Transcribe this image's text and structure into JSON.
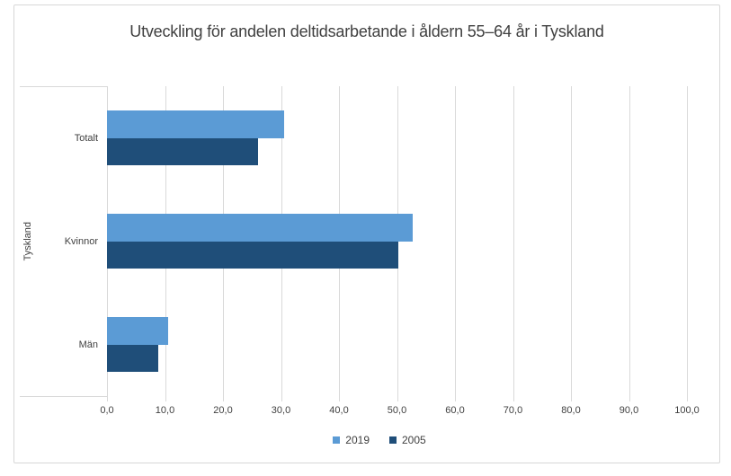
{
  "chart_data": {
    "type": "bar",
    "orientation": "horizontal",
    "title": "Utveckling för andelen deltidsarbetande i åldern 55–64 år i Tyskland",
    "category_group_label": "Tyskland",
    "categories": [
      "Totalt",
      "Kvinnor",
      "Män"
    ],
    "series": [
      {
        "name": "2019",
        "color": "#5B9BD5",
        "values": [
          30.6,
          52.7,
          10.5
        ]
      },
      {
        "name": "2005",
        "color": "#1F4E79",
        "values": [
          26.0,
          50.3,
          8.9
        ]
      }
    ],
    "xlim": [
      0,
      100
    ],
    "x_tick_step": 10,
    "x_tick_labels": [
      "0,0",
      "10,0",
      "20,0",
      "30,0",
      "40,0",
      "50,0",
      "60,0",
      "70,0",
      "80,0",
      "90,0",
      "100,0"
    ],
    "grid": true,
    "legend_position": "bottom",
    "colors": {
      "gridline": "#D9D9D9",
      "text": "#404040",
      "series_2019": "#5B9BD5",
      "series_2005": "#1F4E79"
    }
  }
}
